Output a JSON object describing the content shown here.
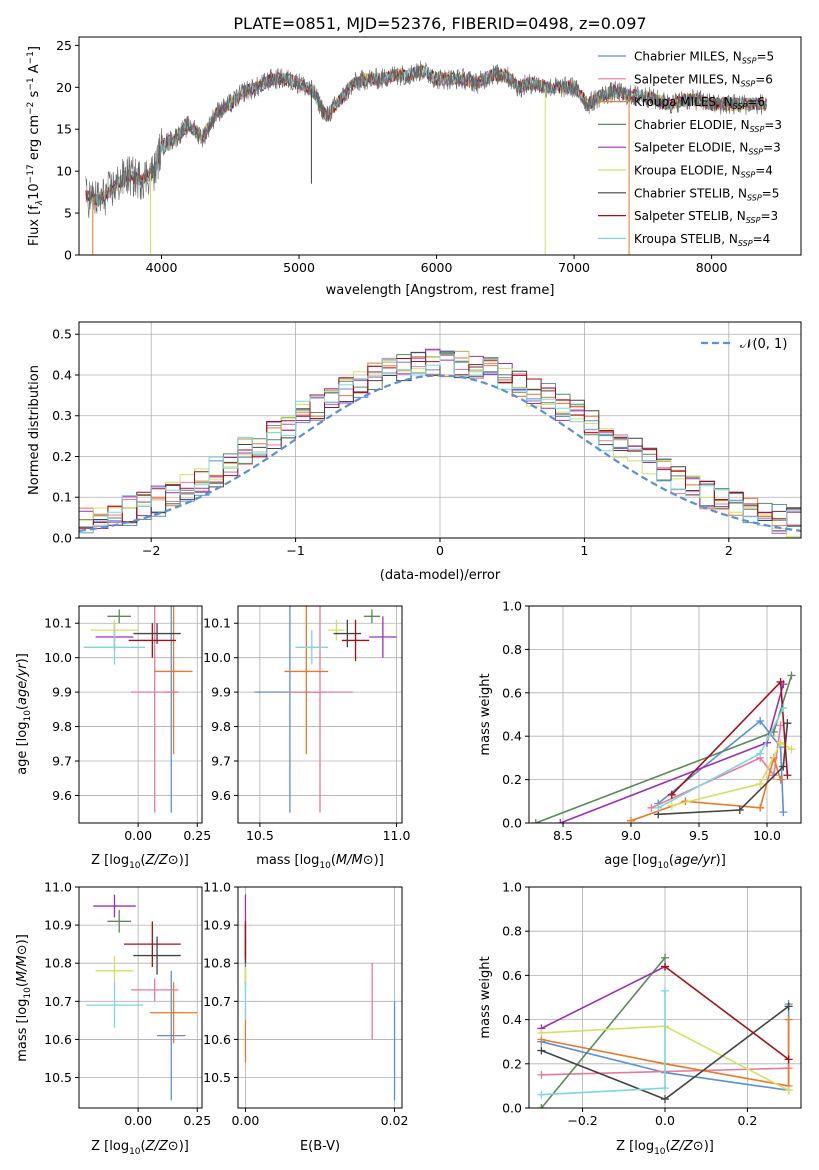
{
  "title": "PLATE=0851, MJD=52376, FIBERID=0498, z=0.097",
  "colors": {
    "chabrier_miles": "#5b8fd6",
    "salpeter_miles": "#e8799f",
    "kroupa_miles": "#e8782a",
    "chabrier_elodie": "#5c8a5a",
    "salpeter_elodie": "#9b30b8",
    "kroupa_elodie": "#d4e060",
    "chabrier_stelib": "#444444",
    "salpeter_stelib": "#a3101a",
    "kroupa_stelib": "#7fd6dc",
    "gaussian": "#5b8fd6"
  },
  "chart_data": [
    {
      "id": "spectrum",
      "type": "line",
      "xlabel": "wavelength [Angstrom, rest frame]",
      "ylabel": "Flux [f",
      "xlim": [
        3400,
        8650
      ],
      "ylim": [
        0,
        26
      ],
      "xticks": [
        "4000",
        "5000",
        "6000",
        "7000",
        "8000"
      ],
      "yticks": [
        "0",
        "5",
        "10",
        "15",
        "20",
        "25"
      ],
      "xtick_values": [
        4000,
        5000,
        6000,
        7000,
        8000
      ],
      "ytick_values": [
        0,
        5,
        10,
        15,
        20,
        25
      ],
      "continuum": [
        [
          3450,
          7
        ],
        [
          3550,
          6.5
        ],
        [
          3650,
          8
        ],
        [
          3750,
          9.5
        ],
        [
          3850,
          9
        ],
        [
          3950,
          10
        ],
        [
          4000,
          13
        ],
        [
          4100,
          14
        ],
        [
          4200,
          15.5
        ],
        [
          4300,
          14
        ],
        [
          4400,
          17
        ],
        [
          4500,
          18
        ],
        [
          4600,
          19.5
        ],
        [
          4700,
          20
        ],
        [
          4800,
          21
        ],
        [
          4900,
          21
        ],
        [
          5000,
          20.5
        ],
        [
          5100,
          19.5
        ],
        [
          5200,
          16.5
        ],
        [
          5300,
          18.5
        ],
        [
          5400,
          20.5
        ],
        [
          5500,
          21
        ],
        [
          5600,
          21
        ],
        [
          5700,
          21.5
        ],
        [
          5800,
          21.5
        ],
        [
          5900,
          22
        ],
        [
          6000,
          21
        ],
        [
          6100,
          21
        ],
        [
          6200,
          21
        ],
        [
          6300,
          20.5
        ],
        [
          6400,
          21.5
        ],
        [
          6500,
          21.5
        ],
        [
          6600,
          20
        ],
        [
          6700,
          20.5
        ],
        [
          6800,
          20
        ],
        [
          6900,
          20
        ],
        [
          7000,
          20
        ],
        [
          7100,
          18
        ],
        [
          7200,
          19
        ],
        [
          7300,
          19.5
        ],
        [
          7400,
          19
        ],
        [
          7500,
          19
        ],
        [
          7600,
          18.5
        ],
        [
          7700,
          18
        ],
        [
          7800,
          18.5
        ],
        [
          7900,
          18.5
        ],
        [
          8000,
          18
        ],
        [
          8100,
          18
        ],
        [
          8200,
          18
        ],
        [
          8300,
          18
        ],
        [
          8400,
          18
        ]
      ],
      "legend_position": "upper-right",
      "legend": [
        {
          "key": "chabrier_miles",
          "label": "Chabrier MILES, N",
          "n": "=5"
        },
        {
          "key": "salpeter_miles",
          "label": "Salpeter MILES, N",
          "n": "=6"
        },
        {
          "key": "kroupa_miles",
          "label": "Kroupa MILES, N",
          "n": "=6"
        },
        {
          "key": "chabrier_elodie",
          "label": "Chabrier ELODIE, N",
          "n": "=3"
        },
        {
          "key": "salpeter_elodie",
          "label": "Salpeter ELODIE, N",
          "n": "=3"
        },
        {
          "key": "kroupa_elodie",
          "label": "Kroupa ELODIE, N",
          "n": "=4"
        },
        {
          "key": "chabrier_stelib",
          "label": "Chabrier STELIB, N",
          "n": "=5"
        },
        {
          "key": "salpeter_stelib",
          "label": "Salpeter STELIB, N",
          "n": "=3"
        },
        {
          "key": "kroupa_stelib",
          "label": "Kroupa STELIB, N",
          "n": "=4"
        }
      ]
    },
    {
      "id": "residuals",
      "type": "histogram",
      "xlabel": "(data-model)/error",
      "ylabel": "Normed distribution",
      "xlim": [
        -2.5,
        2.5
      ],
      "ylim": [
        0,
        0.53
      ],
      "xticks": [
        "−2",
        "−1",
        "0",
        "1",
        "2"
      ],
      "yticks": [
        "0.0",
        "0.1",
        "0.2",
        "0.3",
        "0.4",
        "0.5"
      ],
      "xtick_values": [
        -2,
        -1,
        0,
        1,
        2
      ],
      "ytick_values": [
        0,
        0.1,
        0.2,
        0.3,
        0.4,
        0.5
      ],
      "grid": true,
      "legend_label": "𝒩(0, 1)",
      "legend_position": "upper-right"
    },
    {
      "id": "z-age",
      "type": "errorbar",
      "xlabel": "Z [log",
      "ylabel": "age  [log",
      "xlim": [
        -0.25,
        0.27
      ],
      "ylim": [
        9.52,
        10.15
      ],
      "xticks": [
        "0.00",
        "0.25"
      ],
      "yticks": [
        "9.6",
        "9.7",
        "9.8",
        "9.9",
        "10.0",
        "10.1"
      ],
      "xtick_values": [
        0,
        0.25
      ],
      "ytick_values": [
        9.6,
        9.7,
        9.8,
        9.9,
        10.0,
        10.1
      ],
      "grid": true,
      "points": [
        {
          "key": "chabrier_miles",
          "x": 0.14,
          "xerr": 0.03,
          "y": 9.9,
          "yerr": 0.35
        },
        {
          "key": "salpeter_miles",
          "x": 0.07,
          "xerr": 0.1,
          "y": 9.9,
          "yerr": 0.35
        },
        {
          "key": "kroupa_miles",
          "x": 0.15,
          "xerr": 0.08,
          "y": 9.96,
          "yerr": 0.24
        },
        {
          "key": "chabrier_elodie",
          "x": -0.08,
          "xerr": 0.05,
          "y": 10.12,
          "yerr": 0.02
        },
        {
          "key": "salpeter_elodie",
          "x": -0.1,
          "xerr": 0.08,
          "y": 10.06,
          "yerr": 0.04
        },
        {
          "key": "kroupa_elodie",
          "x": -0.1,
          "xerr": 0.1,
          "y": 10.08,
          "yerr": 0.03
        },
        {
          "key": "chabrier_stelib",
          "x": 0.08,
          "xerr": 0.1,
          "y": 10.07,
          "yerr": 0.03
        },
        {
          "key": "salpeter_stelib",
          "x": 0.06,
          "xerr": 0.1,
          "y": 10.05,
          "yerr": 0.05
        },
        {
          "key": "kroupa_stelib",
          "x": -0.1,
          "xerr": 0.13,
          "y": 10.03,
          "yerr": 0.05
        }
      ]
    },
    {
      "id": "mass-age",
      "type": "errorbar",
      "xlabel": "mass [log",
      "xlim": [
        10.42,
        11.02
      ],
      "ylim": [
        9.52,
        10.15
      ],
      "xticks": [
        "10.5",
        "11.0"
      ],
      "yticks": [
        "9.6",
        "9.7",
        "9.8",
        "9.9",
        "10.0",
        "10.1"
      ],
      "xtick_values": [
        10.5,
        11.0
      ],
      "ytick_values": [
        9.6,
        9.7,
        9.8,
        9.9,
        10.0,
        10.1
      ],
      "grid": true,
      "points": [
        {
          "key": "chabrier_miles",
          "x": 10.61,
          "xerr": 0.13,
          "y": 9.9,
          "yerr": 0.35
        },
        {
          "key": "salpeter_miles",
          "x": 10.72,
          "xerr": 0.12,
          "y": 9.9,
          "yerr": 0.35
        },
        {
          "key": "kroupa_miles",
          "x": 10.67,
          "xerr": 0.08,
          "y": 9.96,
          "yerr": 0.24
        },
        {
          "key": "chabrier_elodie",
          "x": 10.91,
          "xerr": 0.03,
          "y": 10.12,
          "yerr": 0.02
        },
        {
          "key": "salpeter_elodie",
          "x": 10.95,
          "xerr": 0.05,
          "y": 10.06,
          "yerr": 0.06
        },
        {
          "key": "kroupa_elodie",
          "x": 10.78,
          "xerr": 0.03,
          "y": 10.08,
          "yerr": 0.03
        },
        {
          "key": "chabrier_stelib",
          "x": 10.82,
          "xerr": 0.05,
          "y": 10.07,
          "yerr": 0.04
        },
        {
          "key": "salpeter_stelib",
          "x": 10.85,
          "xerr": 0.05,
          "y": 10.05,
          "yerr": 0.06
        },
        {
          "key": "kroupa_stelib",
          "x": 10.69,
          "xerr": 0.06,
          "y": 10.03,
          "yerr": 0.05
        }
      ]
    },
    {
      "id": "age-weight",
      "type": "line",
      "xlabel": "age  [log",
      "ylabel": "mass weight",
      "xlim": [
        8.25,
        10.25
      ],
      "ylim": [
        0,
        1
      ],
      "xticks": [
        "8.5",
        "9.0",
        "9.5",
        "10.0"
      ],
      "yticks": [
        "0.0",
        "0.2",
        "0.4",
        "0.6",
        "0.8",
        "1.0"
      ],
      "xtick_values": [
        8.5,
        9.0,
        9.5,
        10.0
      ],
      "ytick_values": [
        0,
        0.2,
        0.4,
        0.6,
        0.8,
        1.0
      ],
      "grid": true,
      "series": [
        {
          "key": "chabrier_miles",
          "points": [
            [
              9.2,
              0.09
            ],
            [
              9.95,
              0.47
            ],
            [
              10.1,
              0.35
            ],
            [
              10.12,
              0.05
            ]
          ]
        },
        {
          "key": "salpeter_miles",
          "points": [
            [
              9.15,
              0.07
            ],
            [
              9.95,
              0.3
            ],
            [
              10.05,
              0.22
            ],
            [
              10.1,
              0.45
            ]
          ]
        },
        {
          "key": "kroupa_miles",
          "points": [
            [
              9.0,
              0.01
            ],
            [
              9.4,
              0.1
            ],
            [
              9.95,
              0.07
            ],
            [
              10.05,
              0.3
            ],
            [
              10.1,
              0.2
            ]
          ]
        },
        {
          "key": "chabrier_elodie",
          "points": [
            [
              8.3,
              0.0
            ],
            [
              10.05,
              0.42
            ],
            [
              10.18,
              0.68
            ]
          ]
        },
        {
          "key": "salpeter_elodie",
          "points": [
            [
              8.48,
              0.0
            ],
            [
              10.0,
              0.37
            ],
            [
              10.12,
              0.64
            ]
          ]
        },
        {
          "key": "kroupa_elodie",
          "points": [
            [
              9.3,
              0.08
            ],
            [
              9.95,
              0.18
            ],
            [
              10.1,
              0.37
            ],
            [
              10.18,
              0.34
            ]
          ]
        },
        {
          "key": "chabrier_stelib",
          "points": [
            [
              9.2,
              0.04
            ],
            [
              9.8,
              0.06
            ],
            [
              10.12,
              0.26
            ],
            [
              10.15,
              0.46
            ]
          ]
        },
        {
          "key": "salpeter_stelib",
          "points": [
            [
              9.3,
              0.13
            ],
            [
              10.1,
              0.65
            ],
            [
              10.15,
              0.22
            ]
          ]
        },
        {
          "key": "kroupa_stelib",
          "points": [
            [
              9.2,
              0.07
            ],
            [
              9.95,
              0.32
            ],
            [
              10.12,
              0.53
            ]
          ]
        }
      ]
    },
    {
      "id": "z-mass",
      "type": "errorbar",
      "xlabel": "Z [log",
      "ylabel": "mass [log",
      "xlim": [
        -0.25,
        0.27
      ],
      "ylim": [
        10.42,
        11.0
      ],
      "xticks": [
        "0.00",
        "0.25"
      ],
      "yticks": [
        "10.5",
        "10.6",
        "10.7",
        "10.8",
        "10.9",
        "11.0"
      ],
      "xtick_values": [
        0,
        0.25
      ],
      "ytick_values": [
        10.5,
        10.6,
        10.7,
        10.8,
        10.9,
        11.0
      ],
      "grid": true,
      "points": [
        {
          "key": "chabrier_miles",
          "x": 0.14,
          "xerr": 0.06,
          "y": 10.61,
          "yerr": 0.17
        },
        {
          "key": "salpeter_miles",
          "x": 0.07,
          "xerr": 0.1,
          "y": 10.73,
          "yerr": 0.03
        },
        {
          "key": "kroupa_miles",
          "x": 0.15,
          "xerr": 0.1,
          "y": 10.67,
          "yerr": 0.08
        },
        {
          "key": "chabrier_elodie",
          "x": -0.08,
          "xerr": 0.05,
          "y": 10.91,
          "yerr": 0.03
        },
        {
          "key": "salpeter_elodie",
          "x": -0.1,
          "xerr": 0.09,
          "y": 10.95,
          "yerr": 0.03
        },
        {
          "key": "kroupa_elodie",
          "x": -0.1,
          "xerr": 0.08,
          "y": 10.78,
          "yerr": 0.04
        },
        {
          "key": "chabrier_stelib",
          "x": 0.08,
          "xerr": 0.1,
          "y": 10.82,
          "yerr": 0.05
        },
        {
          "key": "salpeter_stelib",
          "x": 0.06,
          "xerr": 0.12,
          "y": 10.85,
          "yerr": 0.06
        },
        {
          "key": "kroupa_stelib",
          "x": -0.1,
          "xerr": 0.12,
          "y": 10.69,
          "yerr": 0.06
        }
      ]
    },
    {
      "id": "ebv-mass",
      "type": "errorbar",
      "xlabel": "E(B-V)",
      "xlim": [
        -0.001,
        0.021
      ],
      "ylim": [
        10.42,
        11.0
      ],
      "xticks": [
        "0.00",
        "0.02"
      ],
      "yticks": [
        "10.5",
        "10.6",
        "10.7",
        "10.8",
        "10.9",
        "11.0"
      ],
      "xtick_values": [
        0,
        0.02
      ],
      "ytick_values": [
        10.5,
        10.6,
        10.7,
        10.8,
        10.9,
        11.0
      ],
      "grid": true,
      "points": [
        {
          "key": "chabrier_miles",
          "x": 0.02,
          "xerr": 0,
          "y": 10.57,
          "yerr": 0.13
        },
        {
          "key": "salpeter_miles",
          "x": 0.017,
          "xerr": 0,
          "y": 10.7,
          "yerr": 0.1
        },
        {
          "key": "kroupa_miles",
          "x": 0.0,
          "xerr": 0,
          "y": 10.61,
          "yerr": 0.07
        },
        {
          "key": "chabrier_elodie",
          "x": 0.0,
          "xerr": 0,
          "y": 10.8,
          "yerr": 0.06
        },
        {
          "key": "salpeter_elodie",
          "x": 0.0,
          "xerr": 0,
          "y": 10.9,
          "yerr": 0.08
        },
        {
          "key": "kroupa_elodie",
          "x": 0.0,
          "xerr": 0,
          "y": 10.75,
          "yerr": 0.04
        },
        {
          "key": "chabrier_stelib",
          "x": 0.0,
          "xerr": 0,
          "y": 10.85,
          "yerr": 0.05
        },
        {
          "key": "salpeter_stelib",
          "x": 0.0,
          "xerr": 0,
          "y": 10.86,
          "yerr": 0.05
        },
        {
          "key": "kroupa_stelib",
          "x": 0.0,
          "xerr": 0,
          "y": 10.7,
          "yerr": 0.05
        }
      ]
    },
    {
      "id": "z-weight",
      "type": "line",
      "xlabel": "Z [log",
      "ylabel": "mass weight",
      "xlim": [
        -0.33,
        0.33
      ],
      "ylim": [
        0,
        1
      ],
      "xticks": [
        "−0.2",
        "0.0",
        "0.2"
      ],
      "yticks": [
        "0.0",
        "0.2",
        "0.4",
        "0.6",
        "0.8",
        "1.0"
      ],
      "xtick_values": [
        -0.2,
        0,
        0.2
      ],
      "ytick_values": [
        0,
        0.2,
        0.4,
        0.6,
        0.8,
        1.0
      ],
      "grid": true,
      "series": [
        {
          "key": "chabrier_miles",
          "points": [
            [
              -0.3,
              0.3
            ],
            [
              0.0,
              0.16
            ],
            [
              0.3,
              0.08
            ],
            [
              0.3,
              0.47
            ]
          ]
        },
        {
          "key": "salpeter_miles",
          "points": [
            [
              -0.3,
              0.15
            ],
            [
              0.3,
              0.18
            ]
          ]
        },
        {
          "key": "kroupa_miles",
          "points": [
            [
              -0.3,
              0.31
            ],
            [
              0.0,
              0.2
            ],
            [
              0.3,
              0.1
            ],
            [
              0.3,
              0.4
            ]
          ]
        },
        {
          "key": "chabrier_elodie",
          "points": [
            [
              -0.3,
              0.0
            ],
            [
              0.0,
              0.68
            ]
          ]
        },
        {
          "key": "salpeter_elodie",
          "points": [
            [
              -0.3,
              0.36
            ],
            [
              0.0,
              0.64
            ]
          ]
        },
        {
          "key": "kroupa_elodie",
          "points": [
            [
              -0.3,
              0.34
            ],
            [
              0.0,
              0.37
            ],
            [
              0.3,
              0.08
            ]
          ]
        },
        {
          "key": "chabrier_stelib",
          "points": [
            [
              -0.3,
              0.26
            ],
            [
              0.0,
              0.04
            ],
            [
              0.3,
              0.46
            ]
          ]
        },
        {
          "key": "salpeter_stelib",
          "points": [
            [
              0.0,
              0.64
            ],
            [
              0.3,
              0.22
            ]
          ]
        },
        {
          "key": "kroupa_stelib",
          "points": [
            [
              -0.3,
              0.06
            ],
            [
              0.0,
              0.09
            ],
            [
              0.0,
              0.53
            ]
          ]
        }
      ]
    }
  ]
}
